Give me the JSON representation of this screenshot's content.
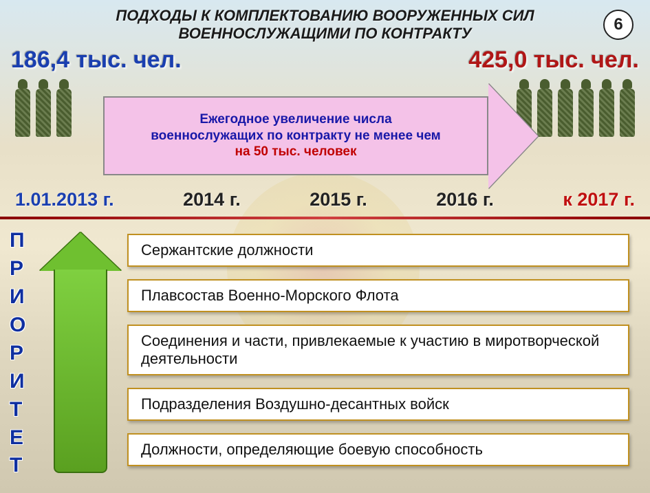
{
  "page_number": "6",
  "header": {
    "title_line1": "ПОДХОДЫ К КОМПЛЕКТОВАНИЮ ВООРУЖЕННЫХ СИЛ",
    "title_line2": "ВОЕННОСЛУЖАЩИМИ ПО КОНТРАКТУ"
  },
  "stats": {
    "start_value": "186,4 тыс. чел.",
    "end_value": "425,0 тыс. чел.",
    "start_color": "#1a3fb0",
    "end_color": "#b01616"
  },
  "arrow": {
    "line1_bold": "Ежегодное увеличение",
    "line1_rest": " числа",
    "line2": "военнослужащих по контракту не менее чем",
    "line3_red1": "на 50 тыс.",
    "line3_rest": " человек",
    "background": "#f4c2e8",
    "text_color": "#1818a8",
    "accent_color": "#c00000"
  },
  "timeline": {
    "start": "1.01.2013 г.",
    "y2014": "2014 г.",
    "y2015": "2015 г.",
    "y2016": "2016 г.",
    "end": "к 2017 г."
  },
  "priority_label": {
    "letters": [
      "П",
      "Р",
      "И",
      "О",
      "Р",
      "И",
      "Т",
      "Е",
      "Т"
    ],
    "color": "#0f2fa0"
  },
  "green_arrow": {
    "fill_top": "#7fd040",
    "fill_bottom": "#5aa020",
    "border": "#3a7010"
  },
  "items": [
    {
      "text": "Сержантские должности",
      "tall": false
    },
    {
      "text": "Плавсостав Военно-Морского Флота",
      "tall": false
    },
    {
      "text": "Соединения и части, привлекаемые к участию в миротворческой деятельности",
      "tall": true
    },
    {
      "text": "Подразделения Воздушно-десантных войск",
      "tall": false
    },
    {
      "text": "Должности, определяющие боевую способность",
      "tall": false
    }
  ],
  "item_style": {
    "background": "#ffffff",
    "border_color": "#c09020",
    "font_size_pt": 16
  },
  "soldiers": {
    "left_count": 3,
    "right_count": 6,
    "camo_dark": "#4a5d2f",
    "camo_light": "#6b7d4f"
  },
  "divider_color": "#8a0000"
}
